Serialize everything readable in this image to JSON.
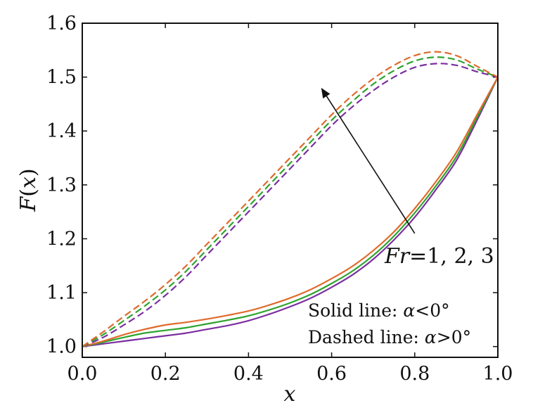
{
  "chart_data": {
    "type": "line",
    "xlabel": "x",
    "ylabel_parts": {
      "f": "F",
      "open": "(",
      "x": "x",
      "close": ")"
    },
    "xlim": [
      0.0,
      1.0
    ],
    "ylim": [
      0.98,
      1.6
    ],
    "x_ticks": [
      0.0,
      0.2,
      0.4,
      0.6,
      0.8,
      1.0
    ],
    "x_tick_labels": [
      "0.0",
      "0.2",
      "0.4",
      "0.6",
      "0.8",
      "1.0"
    ],
    "y_ticks": [
      1.0,
      1.1,
      1.2,
      1.3,
      1.4,
      1.5,
      1.6
    ],
    "y_tick_labels": [
      "1.0",
      "1.1",
      "1.2",
      "1.3",
      "1.4",
      "1.5",
      "1.6"
    ],
    "grid": false,
    "x": [
      0.0,
      0.05,
      0.1,
      0.15,
      0.2,
      0.25,
      0.3,
      0.35,
      0.4,
      0.45,
      0.5,
      0.55,
      0.6,
      0.65,
      0.7,
      0.75,
      0.8,
      0.85,
      0.9,
      0.95,
      1.0
    ],
    "series": [
      {
        "style": "solid",
        "color": "#7b2fa0",
        "values": [
          1.0,
          1.005,
          1.01,
          1.015,
          1.02,
          1.025,
          1.032,
          1.039,
          1.048,
          1.06,
          1.074,
          1.09,
          1.11,
          1.133,
          1.162,
          1.198,
          1.24,
          1.29,
          1.345,
          1.42,
          1.5
        ]
      },
      {
        "style": "solid",
        "color": "#2ea42e",
        "values": [
          1.0,
          1.008,
          1.017,
          1.025,
          1.03,
          1.035,
          1.042,
          1.049,
          1.057,
          1.068,
          1.081,
          1.097,
          1.117,
          1.14,
          1.169,
          1.205,
          1.248,
          1.297,
          1.352,
          1.425,
          1.5
        ]
      },
      {
        "style": "solid",
        "color": "#e06a2c",
        "values": [
          1.0,
          1.01,
          1.022,
          1.032,
          1.04,
          1.045,
          1.051,
          1.058,
          1.066,
          1.077,
          1.09,
          1.106,
          1.126,
          1.149,
          1.178,
          1.213,
          1.256,
          1.305,
          1.36,
          1.43,
          1.5
        ]
      },
      {
        "style": "dashed",
        "color": "#7b2fa0",
        "values": [
          1.0,
          1.017,
          1.04,
          1.065,
          1.095,
          1.13,
          1.17,
          1.21,
          1.25,
          1.29,
          1.33,
          1.37,
          1.41,
          1.445,
          1.475,
          1.5,
          1.518,
          1.525,
          1.522,
          1.51,
          1.5
        ]
      },
      {
        "style": "dashed",
        "color": "#2ea42e",
        "values": [
          1.0,
          1.022,
          1.048,
          1.075,
          1.105,
          1.14,
          1.18,
          1.22,
          1.26,
          1.3,
          1.34,
          1.38,
          1.42,
          1.455,
          1.487,
          1.512,
          1.53,
          1.537,
          1.532,
          1.515,
          1.5
        ]
      },
      {
        "style": "dashed",
        "color": "#e06a2c",
        "values": [
          1.0,
          1.027,
          1.056,
          1.084,
          1.115,
          1.15,
          1.19,
          1.23,
          1.27,
          1.31,
          1.35,
          1.39,
          1.43,
          1.466,
          1.497,
          1.522,
          1.54,
          1.547,
          1.54,
          1.52,
          1.5
        ]
      }
    ],
    "arrow": {
      "from": [
        0.8,
        1.21
      ],
      "to": [
        0.575,
        1.48
      ]
    },
    "annotations": {
      "fr_prefix": "Fr",
      "fr_values": "=1, 2, 3",
      "solid_text": "Solid line: ",
      "solid_alpha": "α",
      "solid_rel": "<0°",
      "dashed_text": "Dashed line: ",
      "dashed_alpha": "α",
      "dashed_rel": ">0°"
    }
  }
}
